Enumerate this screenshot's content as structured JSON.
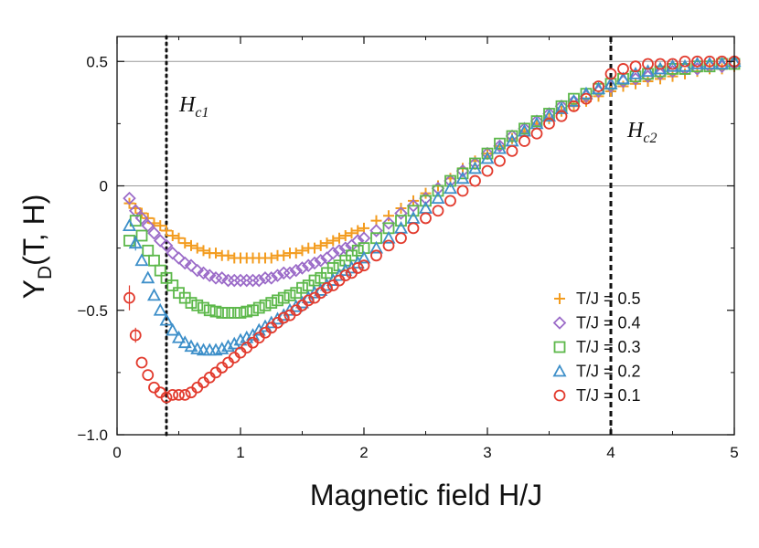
{
  "chart_data": {
    "type": "scatter",
    "title": "",
    "xlabel": "Magnetic field H/J",
    "ylabel_main": "Y",
    "ylabel_sub": "D",
    "ylabel_rest": "(T, H)",
    "xlim": [
      0,
      5
    ],
    "ylim": [
      -1.0,
      0.6
    ],
    "xticks": [
      0,
      1,
      2,
      3,
      4,
      5
    ],
    "xtick_labels": [
      "0",
      "1",
      "2",
      "3",
      "4",
      "5"
    ],
    "yticks": [
      -1.0,
      -0.5,
      0,
      0.5
    ],
    "ytick_labels": [
      "−1.0",
      "−0.5",
      "0",
      "0.5"
    ],
    "hgrid": [
      0,
      0.5
    ],
    "legend_position": "center-right",
    "vlines": [
      {
        "x": 0.4,
        "style": "dotted",
        "label": "H",
        "sub": "c1"
      },
      {
        "x": 4.0,
        "style": "dashed",
        "label": "H",
        "sub": "c2"
      }
    ],
    "series": [
      {
        "name": "T/J = 0.5",
        "marker": "plus",
        "color": "#f39c1f",
        "x": [
          0.1,
          0.15,
          0.2,
          0.25,
          0.3,
          0.35,
          0.4,
          0.45,
          0.5,
          0.55,
          0.6,
          0.65,
          0.7,
          0.75,
          0.8,
          0.85,
          0.9,
          0.95,
          1.0,
          1.05,
          1.1,
          1.15,
          1.2,
          1.25,
          1.3,
          1.35,
          1.4,
          1.45,
          1.5,
          1.55,
          1.6,
          1.65,
          1.7,
          1.75,
          1.8,
          1.85,
          1.9,
          1.95,
          2.0,
          2.1,
          2.2,
          2.3,
          2.4,
          2.5,
          2.6,
          2.7,
          2.8,
          2.9,
          3.0,
          3.1,
          3.2,
          3.3,
          3.4,
          3.5,
          3.6,
          3.7,
          3.8,
          3.9,
          4.0,
          4.1,
          4.2,
          4.3,
          4.4,
          4.5,
          4.6,
          4.7,
          4.8,
          4.9,
          5.0
        ],
        "y": [
          -0.07,
          -0.09,
          -0.11,
          -0.13,
          -0.15,
          -0.16,
          -0.18,
          -0.2,
          -0.21,
          -0.23,
          -0.24,
          -0.25,
          -0.26,
          -0.27,
          -0.27,
          -0.28,
          -0.28,
          -0.29,
          -0.29,
          -0.29,
          -0.29,
          -0.29,
          -0.29,
          -0.29,
          -0.28,
          -0.28,
          -0.27,
          -0.27,
          -0.26,
          -0.25,
          -0.25,
          -0.24,
          -0.23,
          -0.22,
          -0.21,
          -0.2,
          -0.19,
          -0.18,
          -0.17,
          -0.14,
          -0.12,
          -0.09,
          -0.06,
          -0.03,
          0.0,
          0.03,
          0.07,
          0.1,
          0.13,
          0.16,
          0.19,
          0.22,
          0.25,
          0.27,
          0.3,
          0.32,
          0.34,
          0.36,
          0.38,
          0.4,
          0.41,
          0.42,
          0.43,
          0.44,
          0.45,
          0.46,
          0.47,
          0.47,
          0.48
        ]
      },
      {
        "name": "T/J = 0.4",
        "marker": "diamond",
        "color": "#9b6bc8",
        "x": [
          0.1,
          0.15,
          0.2,
          0.25,
          0.3,
          0.35,
          0.4,
          0.45,
          0.5,
          0.55,
          0.6,
          0.65,
          0.7,
          0.75,
          0.8,
          0.85,
          0.9,
          0.95,
          1.0,
          1.05,
          1.1,
          1.15,
          1.2,
          1.25,
          1.3,
          1.35,
          1.4,
          1.45,
          1.5,
          1.55,
          1.6,
          1.65,
          1.7,
          1.75,
          1.8,
          1.85,
          1.9,
          1.95,
          2.0,
          2.1,
          2.2,
          2.3,
          2.4,
          2.5,
          2.6,
          2.7,
          2.8,
          2.9,
          3.0,
          3.1,
          3.2,
          3.3,
          3.4,
          3.5,
          3.6,
          3.7,
          3.8,
          3.9,
          4.0,
          4.1,
          4.2,
          4.3,
          4.4,
          4.5,
          4.6,
          4.7,
          4.8,
          4.9,
          5.0
        ],
        "y": [
          -0.05,
          -0.1,
          -0.13,
          -0.16,
          -0.19,
          -0.22,
          -0.24,
          -0.27,
          -0.29,
          -0.31,
          -0.32,
          -0.34,
          -0.35,
          -0.36,
          -0.37,
          -0.37,
          -0.38,
          -0.38,
          -0.38,
          -0.38,
          -0.38,
          -0.38,
          -0.37,
          -0.37,
          -0.36,
          -0.35,
          -0.35,
          -0.34,
          -0.33,
          -0.32,
          -0.31,
          -0.3,
          -0.29,
          -0.27,
          -0.26,
          -0.25,
          -0.24,
          -0.22,
          -0.21,
          -0.18,
          -0.15,
          -0.11,
          -0.08,
          -0.05,
          -0.01,
          0.02,
          0.06,
          0.09,
          0.13,
          0.16,
          0.2,
          0.23,
          0.26,
          0.29,
          0.32,
          0.34,
          0.36,
          0.38,
          0.4,
          0.42,
          0.43,
          0.44,
          0.45,
          0.46,
          0.47,
          0.47,
          0.48,
          0.48,
          0.49
        ]
      },
      {
        "name": "T/J = 0.3",
        "marker": "square",
        "color": "#5cb84a",
        "x": [
          0.1,
          0.15,
          0.2,
          0.25,
          0.3,
          0.35,
          0.4,
          0.45,
          0.5,
          0.55,
          0.6,
          0.65,
          0.7,
          0.75,
          0.8,
          0.85,
          0.9,
          0.95,
          1.0,
          1.05,
          1.1,
          1.15,
          1.2,
          1.25,
          1.3,
          1.35,
          1.4,
          1.45,
          1.5,
          1.55,
          1.6,
          1.65,
          1.7,
          1.75,
          1.8,
          1.85,
          1.9,
          1.95,
          2.0,
          2.1,
          2.2,
          2.3,
          2.4,
          2.5,
          2.6,
          2.7,
          2.8,
          2.9,
          3.0,
          3.1,
          3.2,
          3.3,
          3.4,
          3.5,
          3.6,
          3.7,
          3.8,
          3.9,
          4.0,
          4.1,
          4.2,
          4.3,
          4.4,
          4.5,
          4.6,
          4.7,
          4.8,
          4.9,
          5.0
        ],
        "y": [
          -0.22,
          -0.14,
          -0.2,
          -0.26,
          -0.3,
          -0.34,
          -0.37,
          -0.4,
          -0.43,
          -0.45,
          -0.47,
          -0.48,
          -0.49,
          -0.5,
          -0.505,
          -0.51,
          -0.51,
          -0.51,
          -0.51,
          -0.505,
          -0.5,
          -0.49,
          -0.48,
          -0.47,
          -0.46,
          -0.45,
          -0.44,
          -0.43,
          -0.41,
          -0.4,
          -0.38,
          -0.37,
          -0.35,
          -0.33,
          -0.32,
          -0.3,
          -0.28,
          -0.26,
          -0.25,
          -0.21,
          -0.17,
          -0.14,
          -0.1,
          -0.06,
          -0.02,
          0.02,
          0.05,
          0.09,
          0.13,
          0.17,
          0.2,
          0.23,
          0.26,
          0.29,
          0.32,
          0.35,
          0.37,
          0.39,
          0.41,
          0.43,
          0.44,
          0.45,
          0.46,
          0.47,
          0.47,
          0.48,
          0.48,
          0.49,
          0.49
        ]
      },
      {
        "name": "T/J = 0.2",
        "marker": "triangle",
        "color": "#3d8fc9",
        "x": [
          0.1,
          0.15,
          0.2,
          0.25,
          0.3,
          0.35,
          0.4,
          0.45,
          0.5,
          0.55,
          0.6,
          0.65,
          0.7,
          0.75,
          0.8,
          0.85,
          0.9,
          0.95,
          1.0,
          1.05,
          1.1,
          1.15,
          1.2,
          1.25,
          1.3,
          1.35,
          1.4,
          1.45,
          1.5,
          1.55,
          1.6,
          1.65,
          1.7,
          1.75,
          1.8,
          1.85,
          1.9,
          1.95,
          2.0,
          2.1,
          2.2,
          2.3,
          2.4,
          2.5,
          2.6,
          2.7,
          2.8,
          2.9,
          3.0,
          3.1,
          3.2,
          3.3,
          3.4,
          3.5,
          3.6,
          3.7,
          3.8,
          3.9,
          4.0,
          4.1,
          4.2,
          4.3,
          4.4,
          4.5,
          4.6,
          4.7,
          4.8,
          4.9,
          5.0
        ],
        "y": [
          -0.16,
          -0.23,
          -0.3,
          -0.37,
          -0.44,
          -0.5,
          -0.54,
          -0.58,
          -0.61,
          -0.63,
          -0.645,
          -0.655,
          -0.66,
          -0.66,
          -0.66,
          -0.655,
          -0.645,
          -0.635,
          -0.62,
          -0.61,
          -0.6,
          -0.58,
          -0.565,
          -0.55,
          -0.535,
          -0.52,
          -0.5,
          -0.485,
          -0.47,
          -0.45,
          -0.43,
          -0.42,
          -0.4,
          -0.38,
          -0.36,
          -0.34,
          -0.33,
          -0.31,
          -0.29,
          -0.25,
          -0.21,
          -0.17,
          -0.13,
          -0.09,
          -0.05,
          -0.01,
          0.03,
          0.07,
          0.11,
          0.15,
          0.18,
          0.22,
          0.25,
          0.28,
          0.31,
          0.34,
          0.37,
          0.39,
          0.41,
          0.43,
          0.45,
          0.46,
          0.47,
          0.48,
          0.48,
          0.49,
          0.49,
          0.49,
          0.5
        ]
      },
      {
        "name": "T/J = 0.1",
        "marker": "circle",
        "color": "#e23b2e",
        "x": [
          0.1,
          0.15,
          0.2,
          0.25,
          0.3,
          0.35,
          0.4,
          0.45,
          0.5,
          0.55,
          0.6,
          0.65,
          0.7,
          0.75,
          0.8,
          0.85,
          0.9,
          0.95,
          1.0,
          1.05,
          1.1,
          1.15,
          1.2,
          1.25,
          1.3,
          1.35,
          1.4,
          1.45,
          1.5,
          1.55,
          1.6,
          1.65,
          1.7,
          1.75,
          1.8,
          1.85,
          1.9,
          1.95,
          2.0,
          2.1,
          2.2,
          2.3,
          2.4,
          2.5,
          2.6,
          2.7,
          2.8,
          2.9,
          3.0,
          3.1,
          3.2,
          3.3,
          3.4,
          3.5,
          3.6,
          3.7,
          3.8,
          3.9,
          4.0,
          4.1,
          4.2,
          4.3,
          4.4,
          4.5,
          4.6,
          4.7,
          4.8,
          4.9,
          5.0
        ],
        "y": [
          -0.45,
          -0.6,
          -0.71,
          -0.76,
          -0.81,
          -0.83,
          -0.85,
          -0.84,
          -0.84,
          -0.84,
          -0.83,
          -0.81,
          -0.79,
          -0.77,
          -0.75,
          -0.73,
          -0.71,
          -0.69,
          -0.67,
          -0.65,
          -0.63,
          -0.61,
          -0.59,
          -0.57,
          -0.55,
          -0.53,
          -0.52,
          -0.5,
          -0.48,
          -0.46,
          -0.45,
          -0.43,
          -0.41,
          -0.4,
          -0.38,
          -0.36,
          -0.35,
          -0.33,
          -0.32,
          -0.28,
          -0.24,
          -0.21,
          -0.17,
          -0.13,
          -0.1,
          -0.06,
          -0.02,
          0.02,
          0.06,
          0.1,
          0.14,
          0.18,
          0.21,
          0.25,
          0.28,
          0.32,
          0.35,
          0.4,
          0.45,
          0.47,
          0.48,
          0.49,
          0.49,
          0.49,
          0.5,
          0.5,
          0.5,
          0.5,
          0.5
        ]
      }
    ]
  }
}
